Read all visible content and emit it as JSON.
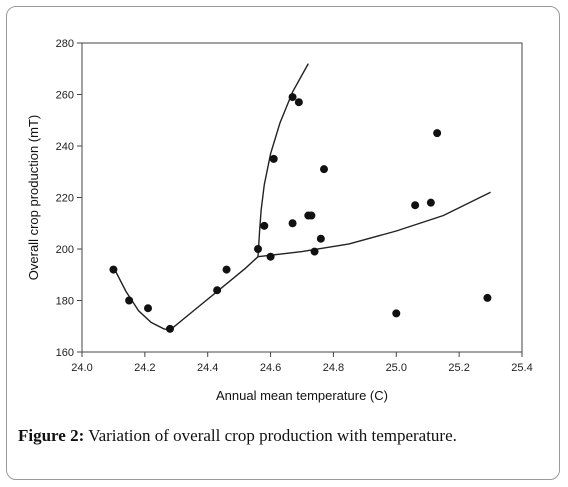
{
  "caption": {
    "label": "Figure 2:",
    "text": " Variation of overall crop production with temperature."
  },
  "chart_data": {
    "type": "scatter",
    "title": "",
    "xlabel": "Annual mean temperature (C)",
    "ylabel": "Overall crop production (mT)",
    "xlim": [
      24.0,
      25.4
    ],
    "ylim": [
      160,
      280
    ],
    "xticks": [
      24.0,
      24.2,
      24.4,
      24.6,
      24.8,
      25.0,
      25.2,
      25.4
    ],
    "yticks": [
      160,
      180,
      200,
      220,
      240,
      260,
      280
    ],
    "xtick_labels": [
      "24.0",
      "24.2",
      "24.4",
      "24.6",
      "24.8",
      "25.0",
      "25.2",
      "25.4"
    ],
    "ytick_labels": [
      "160",
      "180",
      "200",
      "220",
      "240",
      "260",
      "280"
    ],
    "grid": false,
    "legend": "none",
    "points": {
      "x": [
        24.1,
        24.15,
        24.21,
        24.28,
        24.43,
        24.46,
        24.56,
        24.58,
        24.6,
        24.61,
        24.67,
        24.67,
        24.69,
        24.72,
        24.73,
        24.74,
        24.76,
        24.77,
        25.0,
        25.06,
        25.11,
        25.13,
        25.29
      ],
      "y": [
        192,
        180,
        177,
        169,
        184,
        192,
        200,
        209,
        197,
        235,
        210,
        259,
        257,
        213,
        213,
        199,
        204,
        231,
        175,
        217,
        218,
        245,
        181
      ]
    },
    "fit_lines": [
      {
        "x": [
          24.1,
          24.14,
          24.18,
          24.22,
          24.26,
          24.28
        ],
        "y": [
          193,
          183.5,
          176,
          171.5,
          169,
          168.5
        ]
      },
      {
        "x": [
          24.28,
          24.36,
          24.44,
          24.52,
          24.56
        ],
        "y": [
          168.5,
          176.5,
          184.5,
          192.5,
          197
        ]
      },
      {
        "x": [
          24.56,
          24.565,
          24.57,
          24.58,
          24.6,
          24.63,
          24.67,
          24.72
        ],
        "y": [
          197,
          207,
          215,
          225,
          237,
          249,
          261,
          272
        ]
      },
      {
        "x": [
          24.56,
          24.7,
          24.85,
          25.0,
          25.15,
          25.3
        ],
        "y": [
          197,
          199,
          202,
          207,
          213,
          222
        ]
      }
    ]
  }
}
